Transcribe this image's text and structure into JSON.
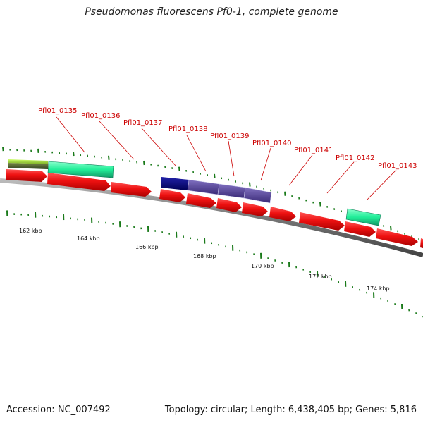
{
  "title": "Pseudomonas fluorescens Pf0-1, complete genome",
  "footer": {
    "accession": "Accession: NC_007492",
    "stats": "Topology: circular; Length: 6,438,405 bp; Genes: 5,816"
  },
  "gene_labels": [
    "Pfl01_0135",
    "Pfl01_0136",
    "Pfl01_0137",
    "Pfl01_0138",
    "Pfl01_0139",
    "Pfl01_0140",
    "Pfl01_0141",
    "Pfl01_0142",
    "Pfl01_0143"
  ],
  "scale_labels": [
    "162 kbp",
    "164 kbp",
    "166 kbp",
    "168 kbp",
    "170 kbp",
    "172 kbp",
    "174 kbp"
  ],
  "colors": {
    "cds_forward": "#ee1111",
    "feature_green": "#22ee99",
    "feature_lime": "#99dd33",
    "feature_olive": "#556633",
    "feature_navy": "#0a0a77",
    "feature_slate": "#5a4a99",
    "backbone": "#888888",
    "ticks": "#1a7a1a",
    "label": "#cc0000"
  }
}
